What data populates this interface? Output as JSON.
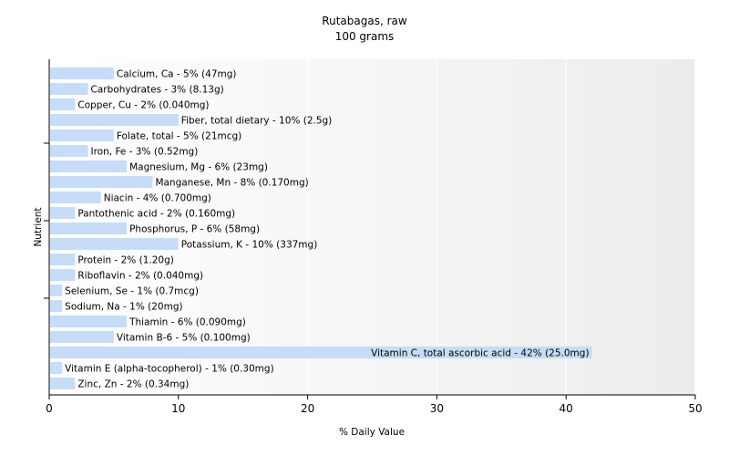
{
  "chart_data": {
    "type": "bar",
    "orientation": "horizontal",
    "title": "Rutabagas, raw",
    "subtitle": "100 grams",
    "xlabel": "% Daily Value",
    "ylabel": "Nutrient",
    "xlim": [
      0,
      50
    ],
    "xticks": [
      0,
      10,
      20,
      30,
      40,
      50
    ],
    "grid": true,
    "bar_color": "#c6dcf7",
    "categories": [
      "Calcium, Ca",
      "Carbohydrates",
      "Copper, Cu",
      "Fiber, total dietary",
      "Folate, total",
      "Iron, Fe",
      "Magnesium, Mg",
      "Manganese, Mn",
      "Niacin",
      "Pantothenic acid",
      "Phosphorus, P",
      "Potassium, K",
      "Protein",
      "Riboflavin",
      "Selenium, Se",
      "Sodium, Na",
      "Thiamin",
      "Vitamin B-6",
      "Vitamin C, total ascorbic acid",
      "Vitamin E (alpha-tocopherol)",
      "Zinc, Zn"
    ],
    "values": [
      5,
      3,
      2,
      10,
      5,
      3,
      6,
      8,
      4,
      2,
      6,
      10,
      2,
      2,
      1,
      1,
      6,
      5,
      42,
      1,
      2
    ],
    "labels": [
      "Calcium, Ca - 5% (47mg)",
      "Carbohydrates - 3% (8.13g)",
      "Copper, Cu - 2% (0.040mg)",
      "Fiber, total dietary - 10% (2.5g)",
      "Folate, total - 5% (21mcg)",
      "Iron, Fe - 3% (0.52mg)",
      "Magnesium, Mg - 6% (23mg)",
      "Manganese, Mn - 8% (0.170mg)",
      "Niacin - 4% (0.700mg)",
      "Pantothenic acid - 2% (0.160mg)",
      "Phosphorus, P - 6% (58mg)",
      "Potassium, K - 10% (337mg)",
      "Protein - 2% (1.20g)",
      "Riboflavin - 2% (0.040mg)",
      "Selenium, Se - 1% (0.7mcg)",
      "Sodium, Na - 1% (20mg)",
      "Thiamin - 6% (0.090mg)",
      "Vitamin B-6 - 5% (0.100mg)",
      "Vitamin C, total ascorbic acid - 42% (25.0mg)",
      "Vitamin E (alpha-tocopherol) - 1% (0.30mg)",
      "Zinc, Zn - 2% (0.34mg)"
    ]
  }
}
